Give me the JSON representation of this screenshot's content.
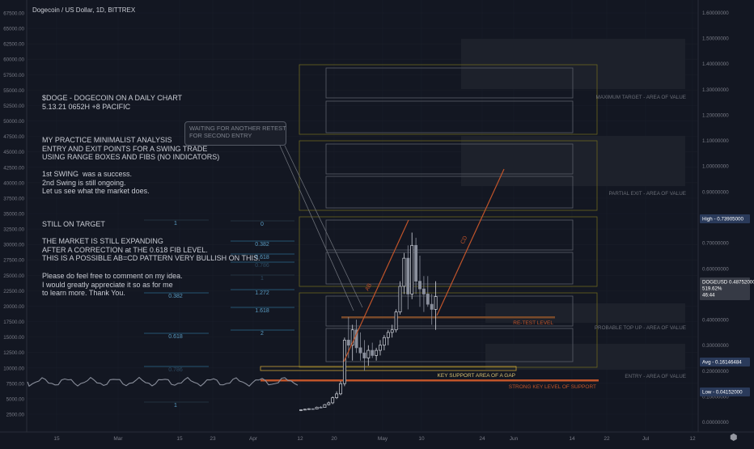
{
  "chart_title": "Dogecoin / US Dollar, 1D, BITTREX",
  "chart_data": {
    "type": "candlestick",
    "title": "Dogecoin / US Dollar, 1D, BITTREX",
    "x_labels": [
      "15",
      "Mar",
      "15",
      "23",
      "Apr",
      "12",
      "20",
      "May",
      "10",
      "24",
      "Jun",
      "14",
      "22",
      "Jul",
      "12"
    ],
    "left_axis_ticks": [
      "67500.00",
      "65000.00",
      "62500.00",
      "60000.00",
      "57500.00",
      "55000.00",
      "52500.00",
      "50000.00",
      "47500.00",
      "45000.00",
      "42500.00",
      "40000.00",
      "37500.00",
      "35000.00",
      "32500.00",
      "30000.00",
      "27500.00",
      "25000.00",
      "22500.00",
      "20000.00",
      "17500.00",
      "15000.00",
      "12500.00",
      "10000.00",
      "7500.00",
      "5000.00",
      "2500.00"
    ],
    "right_axis_ticks": [
      "1.60000000",
      "1.50000000",
      "1.40000000",
      "1.30000000",
      "1.20000000",
      "1.10000000",
      "1.00000000",
      "0.90000000",
      "0.80000000",
      "0.70000000",
      "0.60000000",
      "0.50000000",
      "0.40000000",
      "0.30000000",
      "0.20000000",
      "0.10000000",
      "0.00000000"
    ],
    "price_range": [
      -0.02,
      1.62
    ],
    "series": [
      {
        "ohlc": [
          [
            0.045,
            0.05,
            0.043,
            0.048
          ],
          [
            0.048,
            0.052,
            0.047,
            0.05
          ],
          [
            0.05,
            0.054,
            0.049,
            0.052
          ],
          [
            0.052,
            0.053,
            0.05,
            0.051
          ],
          [
            0.051,
            0.06,
            0.05,
            0.058
          ],
          [
            0.058,
            0.062,
            0.055,
            0.057
          ],
          [
            0.057,
            0.07,
            0.056,
            0.068
          ],
          [
            0.068,
            0.08,
            0.065,
            0.075
          ],
          [
            0.075,
            0.1,
            0.07,
            0.095
          ],
          [
            0.095,
            0.12,
            0.09,
            0.11
          ],
          [
            0.11,
            0.16,
            0.105,
            0.15
          ],
          [
            0.15,
            0.33,
            0.14,
            0.32
          ],
          [
            0.32,
            0.41,
            0.25,
            0.3
          ],
          [
            0.3,
            0.38,
            0.24,
            0.36
          ],
          [
            0.36,
            0.4,
            0.27,
            0.29
          ],
          [
            0.29,
            0.35,
            0.24,
            0.27
          ],
          [
            0.27,
            0.32,
            0.2,
            0.25
          ],
          [
            0.25,
            0.3,
            0.22,
            0.28
          ],
          [
            0.28,
            0.31,
            0.25,
            0.26
          ],
          [
            0.26,
            0.29,
            0.24,
            0.28
          ],
          [
            0.28,
            0.32,
            0.26,
            0.3
          ],
          [
            0.3,
            0.34,
            0.28,
            0.33
          ],
          [
            0.33,
            0.36,
            0.3,
            0.35
          ],
          [
            0.35,
            0.38,
            0.33,
            0.36
          ],
          [
            0.36,
            0.44,
            0.35,
            0.43
          ],
          [
            0.43,
            0.55,
            0.42,
            0.53
          ],
          [
            0.53,
            0.66,
            0.5,
            0.64
          ],
          [
            0.64,
            0.69,
            0.44,
            0.5
          ],
          [
            0.5,
            0.74,
            0.48,
            0.69
          ],
          [
            0.69,
            0.72,
            0.5,
            0.55
          ],
          [
            0.55,
            0.65,
            0.45,
            0.52
          ],
          [
            0.52,
            0.57,
            0.43,
            0.5
          ],
          [
            0.5,
            0.57,
            0.45,
            0.46
          ],
          [
            0.46,
            0.5,
            0.38,
            0.44
          ],
          [
            0.44,
            0.55,
            0.36,
            0.49
          ]
        ]
      }
    ],
    "high": "0.73905000",
    "avg": "0.16146484",
    "low": "0.04152000",
    "last": {
      "symbol": "DOGEUSD",
      "price": "0.48752000",
      "change": "519.62%",
      "countdown": "46:44"
    }
  },
  "notes": {
    "header": "$DOGE - DOGECOIN ON A DAILY CHART\n5.13.21 0652H +8 PACIFIC",
    "analysis": "MY PRACTICE MINIMALIST ANALYSIS\nENTRY AND EXIT POINTS FOR A SWING TRADE\nUSING RANGE BOXES AND FIBS (NO INDICATORS)",
    "swings": "1st SWING  was a success.\n2nd Swing is still ongoing.\nLet us see what the market does.",
    "target": "STILL ON TARGET",
    "market": "THE MARKET IS STILL EXPANDING\nAFTER A CORRECTION at THE 0.618 FIB LEVEL.\nTHIS IS A POSSIBLE AB=CD PATTERN VERY BULLISH ON THIS.",
    "comment": "Please do feel free to comment on my idea.\nI would greatly appreciate it so as for me\nto learn more. Thank You.",
    "callout": "WAITING FOR ANOTHER RETEST\nFOR SECOND ENTRY"
  },
  "zones": {
    "max_target": "MAXIMUM TARGET - AREA OF VALUE",
    "partial_exit": "PARTIAL EXIT - AREA OF VALUE",
    "probable_top_up": "PROBABLE TOP UP - AREA OF VALUE",
    "entry": "ENTRY - AREA OF VALUE",
    "retest": "RE-TEST LEVEL",
    "key_support": "KEY SUPPORT AREA OF A GAP",
    "strong_support": "STRONG KEY LEVEL OF SUPPORT"
  },
  "fib_left": [
    "1",
    "0.382",
    "0.618",
    "0.786",
    "1"
  ],
  "fib_right": [
    "0",
    "0.382",
    "0.618",
    "0.786",
    "1",
    "1.272",
    "1.618",
    "2"
  ],
  "pattern_labels": {
    "ab": "AB",
    "cd": "CD"
  },
  "colors": {
    "background": "#131722",
    "up": "#d1d4dc",
    "down": "#8a8f9c",
    "accent": "#c0542a",
    "zone": "#6b6520",
    "fib": "#2d6b8c"
  },
  "logo_icon": "tradingview-logo-icon"
}
